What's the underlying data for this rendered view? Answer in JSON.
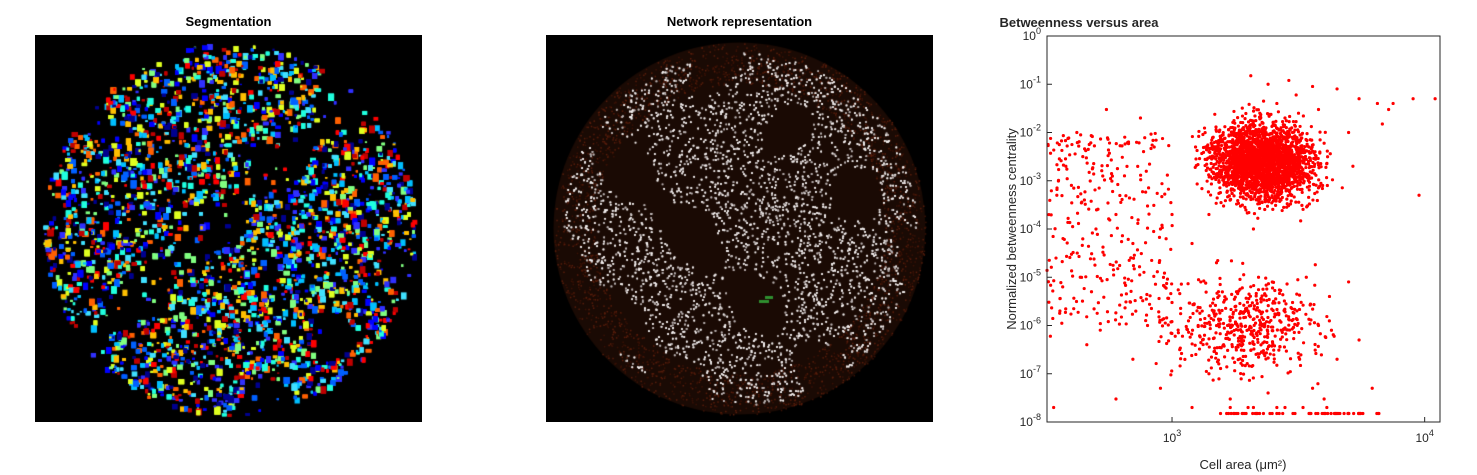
{
  "panels": {
    "segmentation": {
      "title": "Segmentation"
    },
    "network": {
      "title": "Network representation"
    }
  },
  "chart_data": {
    "type": "scatter",
    "title": "Betweenness versus area",
    "xlabel": "Cell area (μm²)",
    "ylabel": "Normalized betweenness centrality",
    "x_scale": "log",
    "y_scale": "log",
    "xlim": [
      320,
      11500
    ],
    "ylim": [
      1e-08,
      1
    ],
    "x_ticks": [
      {
        "value": 1000,
        "base": "10",
        "exp": "3"
      },
      {
        "value": 10000,
        "base": "10",
        "exp": "4"
      }
    ],
    "y_ticks": [
      {
        "value": 1e-08,
        "base": "10",
        "exp": "-8"
      },
      {
        "value": 1e-07,
        "base": "10",
        "exp": "-7"
      },
      {
        "value": 1e-06,
        "base": "10",
        "exp": "-6"
      },
      {
        "value": 1e-05,
        "base": "10",
        "exp": "-5"
      },
      {
        "value": 0.0001,
        "base": "10",
        "exp": "-4"
      },
      {
        "value": 0.001,
        "base": "10",
        "exp": "-3"
      },
      {
        "value": 0.01,
        "base": "10",
        "exp": "-2"
      },
      {
        "value": 0.1,
        "base": "10",
        "exp": "-1"
      },
      {
        "value": 1,
        "base": "10",
        "exp": "0"
      }
    ],
    "grid": false,
    "marker_color": "#ff0000",
    "series": [
      {
        "points": [
          [
            2200,
            0.002
          ],
          [
            2500,
            0.005
          ],
          [
            1800,
            0.001
          ],
          [
            3000,
            0.01
          ],
          [
            2000,
            0.0005
          ],
          [
            2800,
            0.02
          ],
          [
            1600,
            0.0003
          ],
          [
            3500,
            0.003
          ],
          [
            2300,
            0.0008
          ],
          [
            4000,
            0.006
          ],
          [
            1400,
            0.0002
          ],
          [
            2600,
            0.04
          ],
          [
            3200,
            0.0015
          ],
          [
            1900,
            0.008
          ],
          [
            2100,
            0.0001
          ],
          [
            5000,
            0.01
          ],
          [
            1200,
            5e-05
          ],
          [
            2700,
            0.0004
          ],
          [
            3800,
            0.03
          ],
          [
            1700,
            0.002
          ],
          [
            2400,
            0.1
          ],
          [
            3100,
            0.06
          ],
          [
            2900,
            0.12
          ],
          [
            2050,
            0.15
          ],
          [
            3600,
            0.09
          ],
          [
            4500,
            0.08
          ],
          [
            5500,
            0.05
          ],
          [
            6500,
            0.04
          ],
          [
            7200,
            0.03
          ],
          [
            9000,
            0.05
          ],
          [
            11000,
            0.05
          ],
          [
            9500,
            0.0005
          ],
          [
            7500,
            0.04
          ],
          [
            6800,
            0.015
          ],
          [
            5200,
            0.002
          ],
          [
            1000,
            0.0002
          ],
          [
            900,
            0.0001
          ],
          [
            800,
            0.0003
          ],
          [
            700,
            5e-05
          ],
          [
            600,
            0.0002
          ],
          [
            500,
            0.0001
          ],
          [
            450,
            0.0004
          ],
          [
            400,
            3e-05
          ],
          [
            380,
            0.002
          ],
          [
            350,
            0.0005
          ],
          [
            420,
            0.01
          ],
          [
            550,
            0.03
          ],
          [
            650,
            0.008
          ],
          [
            750,
            0.02
          ],
          [
            850,
            0.005
          ],
          [
            480,
            5e-06
          ],
          [
            520,
            8e-07
          ],
          [
            460,
            4e-07
          ],
          [
            600,
            3e-08
          ],
          [
            700,
            2e-07
          ],
          [
            800,
            1e-06
          ],
          [
            900,
            5e-08
          ],
          [
            1000,
            3e-06
          ],
          [
            1100,
            6e-07
          ],
          [
            1200,
            2e-08
          ],
          [
            1300,
            8e-06
          ],
          [
            1400,
            1e-07
          ],
          [
            1500,
            2e-05
          ],
          [
            1600,
            4e-07
          ],
          [
            1700,
            3e-08
          ],
          [
            1800,
            5e-06
          ],
          [
            1900,
            1.5e-07
          ],
          [
            2000,
            2e-06
          ],
          [
            2100,
            2e-08
          ],
          [
            2200,
            1e-05
          ],
          [
            2300,
            3e-07
          ],
          [
            2400,
            4e-08
          ],
          [
            2500,
            6e-06
          ],
          [
            2600,
            1.5e-07
          ],
          [
            2700,
            8e-07
          ],
          [
            2800,
            2e-08
          ],
          [
            3000,
            3e-06
          ],
          [
            3200,
            2e-07
          ],
          [
            3400,
            1e-05
          ],
          [
            3600,
            5e-08
          ],
          [
            3800,
            1e-06
          ],
          [
            4000,
            3e-08
          ],
          [
            4200,
            4e-06
          ],
          [
            4500,
            2e-07
          ],
          [
            5000,
            8e-06
          ],
          [
            5500,
            5e-07
          ],
          [
            6200,
            5e-08
          ],
          [
            340,
            2e-08
          ],
          [
            360,
            2e-06
          ],
          [
            330,
            6e-07
          ],
          [
            2000,
            2e-08
          ],
          [
            2600,
            2e-08
          ],
          [
            3300,
            2e-08
          ],
          [
            4100,
            2e-08
          ],
          [
            1700,
            2e-08
          ]
        ]
      }
    ]
  }
}
